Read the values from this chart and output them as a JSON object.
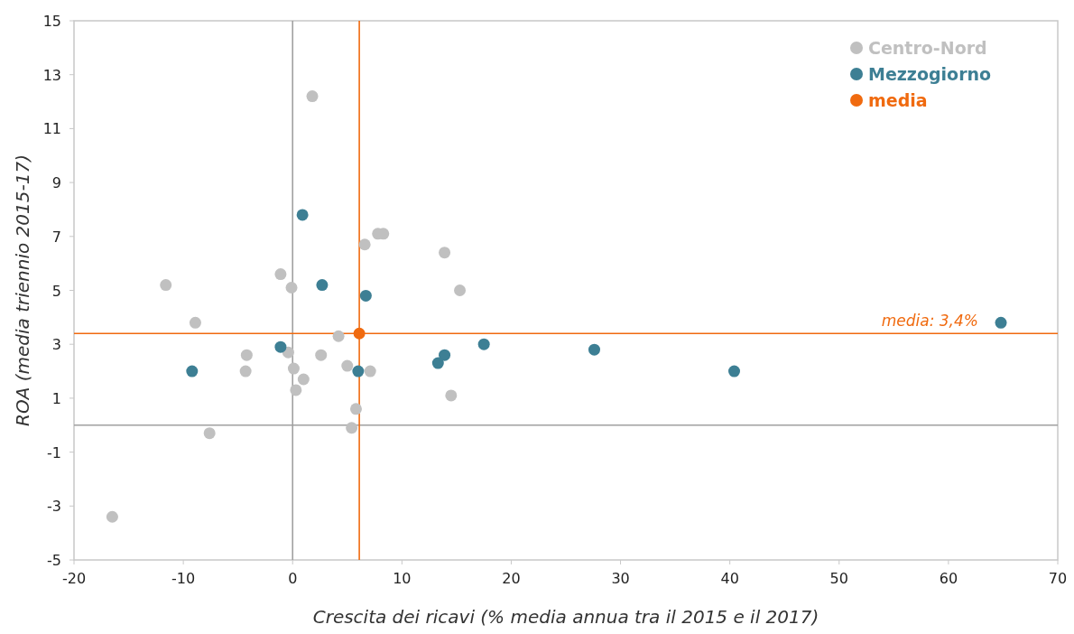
{
  "chart_data": {
    "type": "scatter",
    "xlabel": "Crescita dei ricavi (% media annua tra il 2015 e il 2017)",
    "ylabel": "ROA (media triennio 2015-17)",
    "xlim": [
      -20,
      70
    ],
    "ylim": [
      -5,
      15
    ],
    "xticks": [
      -20,
      -10,
      0,
      10,
      20,
      30,
      40,
      50,
      60,
      70
    ],
    "yticks": [
      -5,
      -3,
      -1,
      1,
      3,
      5,
      7,
      9,
      11,
      13,
      15
    ],
    "marker": "circle",
    "legend": "top right",
    "series": [
      {
        "name": "Centro-Nord",
        "color": "#c0c0c0",
        "x": [
          1.8,
          6.6,
          7.8,
          8.3,
          13.9,
          15.3,
          -1.1,
          -0.1,
          -11.6,
          -8.9,
          4.2,
          -4.2,
          -0.4,
          2.6,
          -4.3,
          0.1,
          5.0,
          7.1,
          1.0,
          0.3,
          14.5,
          5.8,
          5.4,
          -7.6,
          -16.5
        ],
        "values": [
          12.2,
          6.7,
          7.1,
          7.1,
          6.4,
          5.0,
          5.6,
          5.1,
          5.2,
          3.8,
          3.3,
          2.6,
          2.7,
          2.6,
          2.0,
          2.1,
          2.2,
          2.0,
          1.7,
          1.3,
          1.1,
          0.6,
          -0.1,
          -0.3,
          -3.4
        ]
      },
      {
        "name": "Mezzogiorno",
        "color": "#3d7f94",
        "x": [
          0.9,
          2.7,
          6.7,
          -1.1,
          -9.2,
          6.0,
          13.9,
          13.3,
          17.5,
          27.6,
          40.4,
          64.8
        ],
        "values": [
          7.8,
          5.2,
          4.8,
          2.9,
          2.0,
          2.0,
          2.6,
          2.3,
          3.0,
          2.8,
          2.0,
          3.8
        ]
      },
      {
        "name": "media",
        "color": "#f06a0f",
        "x": [
          6.1
        ],
        "values": [
          3.4
        ]
      }
    ],
    "ref_lines": [
      {
        "axis": "x",
        "value": 0,
        "color": "#a0a0a0"
      },
      {
        "axis": "y",
        "value": 0,
        "color": "#a0a0a0"
      },
      {
        "axis": "x",
        "value": 6.1,
        "color": "#f06a0f"
      },
      {
        "axis": "y",
        "value": 3.4,
        "color": "#f06a0f",
        "label": "media: 3,4%"
      }
    ]
  }
}
